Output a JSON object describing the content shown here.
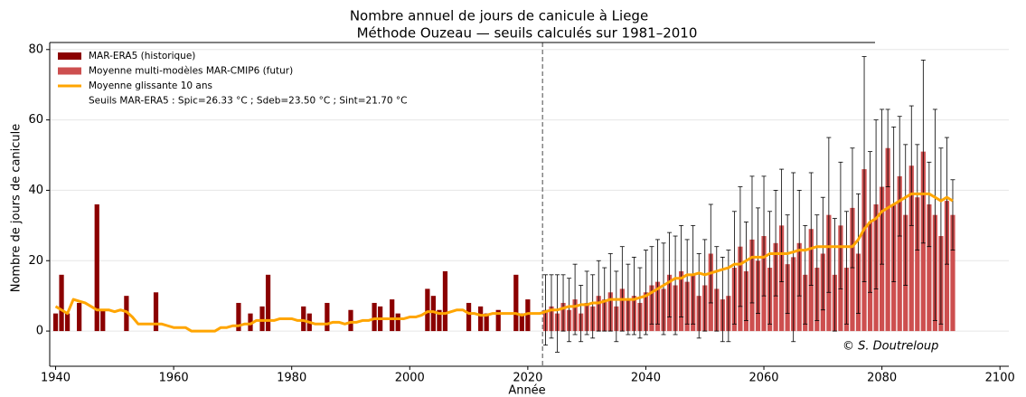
{
  "chart_data": {
    "type": "bar",
    "title": "Nombre annuel de jours de canicule à Liege",
    "subtitle": "Méthode Ouzeau — seuils calculés sur 1981–2010",
    "x_label": "Année",
    "y_label": "Nombre de jours de canicule",
    "legend_note": "Seuils MAR-ERA5 : Spic=26.33 °C ; Sdeb=23.50 °C ; Sint=21.70 °C",
    "annotation": "© S. Doutreloup",
    "legend": "upper left",
    "grid": true,
    "xlim": [
      1939,
      2101.5
    ],
    "xticks": [
      1940,
      1960,
      1980,
      2000,
      2020,
      2040,
      2060,
      2080,
      2100
    ],
    "ylim": [
      -10,
      82
    ],
    "yticks": [
      0,
      20,
      40,
      60,
      80
    ],
    "vline": 2022.5,
    "x": [
      1940,
      1941,
      1942,
      1943,
      1944,
      1945,
      1946,
      1947,
      1948,
      1949,
      1950,
      1951,
      1952,
      1953,
      1954,
      1955,
      1956,
      1957,
      1958,
      1959,
      1960,
      1961,
      1962,
      1963,
      1964,
      1965,
      1966,
      1967,
      1968,
      1969,
      1970,
      1971,
      1972,
      1973,
      1974,
      1975,
      1976,
      1977,
      1978,
      1979,
      1980,
      1981,
      1982,
      1983,
      1984,
      1985,
      1986,
      1987,
      1988,
      1989,
      1990,
      1991,
      1992,
      1993,
      1994,
      1995,
      1996,
      1997,
      1998,
      1999,
      2000,
      2001,
      2002,
      2003,
      2004,
      2005,
      2006,
      2007,
      2008,
      2009,
      2010,
      2011,
      2012,
      2013,
      2014,
      2015,
      2016,
      2017,
      2018,
      2019,
      2020,
      2021,
      2022,
      2023,
      2024,
      2025,
      2026,
      2027,
      2028,
      2029,
      2030,
      2031,
      2032,
      2033,
      2034,
      2035,
      2036,
      2037,
      2038,
      2039,
      2040,
      2041,
      2042,
      2043,
      2044,
      2045,
      2046,
      2047,
      2048,
      2049,
      2050,
      2051,
      2052,
      2053,
      2054,
      2055,
      2056,
      2057,
      2058,
      2059,
      2060,
      2061,
      2062,
      2063,
      2064,
      2065,
      2066,
      2067,
      2068,
      2069,
      2070,
      2071,
      2072,
      2073,
      2074,
      2075,
      2076,
      2077,
      2078,
      2079,
      2080,
      2081,
      2082,
      2083,
      2084,
      2085,
      2086,
      2087,
      2088,
      2089,
      2090,
      2091,
      2092
    ],
    "series": [
      {
        "name": "MAR-ERA5 (historique)",
        "type": "bar",
        "color": "#8b0000",
        "values": [
          5,
          16,
          5,
          0,
          8,
          0,
          0,
          36,
          6,
          0,
          0,
          0,
          10,
          0,
          0,
          0,
          0,
          11,
          0,
          0,
          0,
          0,
          0,
          0,
          0,
          0,
          0,
          0,
          0,
          0,
          0,
          8,
          0,
          5,
          0,
          7,
          16,
          0,
          0,
          0,
          0,
          0,
          7,
          5,
          0,
          0,
          8,
          0,
          0,
          0,
          6,
          0,
          0,
          0,
          8,
          7,
          0,
          9,
          5,
          0,
          0,
          0,
          0,
          12,
          10,
          6,
          17,
          0,
          0,
          0,
          8,
          0,
          7,
          5,
          0,
          6,
          0,
          0,
          16,
          5,
          9,
          0,
          0,
          null,
          null,
          null,
          null,
          null,
          null,
          null,
          null,
          null,
          null,
          null,
          null,
          null,
          null,
          null,
          null,
          null,
          null,
          null,
          null,
          null,
          null,
          null,
          null,
          null,
          null,
          null,
          null,
          null,
          null,
          null,
          null,
          null,
          null,
          null,
          null,
          null,
          null,
          null,
          null,
          null,
          null,
          null,
          null,
          null,
          null,
          null,
          null,
          null,
          null,
          null,
          null,
          null,
          null,
          null,
          null,
          null,
          null,
          null,
          null,
          null,
          null,
          null,
          null,
          null,
          null,
          null,
          null,
          null,
          null
        ]
      },
      {
        "name": "Moyenne multi-modèles MAR-CMIP6 (futur)",
        "type": "bar",
        "color": "#cd4f4f",
        "values": [
          null,
          null,
          null,
          null,
          null,
          null,
          null,
          null,
          null,
          null,
          null,
          null,
          null,
          null,
          null,
          null,
          null,
          null,
          null,
          null,
          null,
          null,
          null,
          null,
          null,
          null,
          null,
          null,
          null,
          null,
          null,
          null,
          null,
          null,
          null,
          null,
          null,
          null,
          null,
          null,
          null,
          null,
          null,
          null,
          null,
          null,
          null,
          null,
          null,
          null,
          null,
          null,
          null,
          null,
          null,
          null,
          null,
          null,
          null,
          null,
          null,
          null,
          null,
          null,
          null,
          null,
          null,
          null,
          null,
          null,
          null,
          null,
          null,
          null,
          null,
          null,
          null,
          null,
          null,
          null,
          null,
          null,
          null,
          6,
          7,
          5,
          8,
          6,
          9,
          5,
          8,
          7,
          10,
          9,
          11,
          7,
          12,
          9,
          10,
          8,
          11,
          13,
          14,
          12,
          16,
          13,
          17,
          14,
          16,
          10,
          13,
          22,
          12,
          9,
          10,
          18,
          24,
          17,
          26,
          20,
          27,
          18,
          25,
          30,
          19,
          21,
          25,
          16,
          29,
          18,
          22,
          33,
          16,
          30,
          18,
          35,
          22,
          46,
          31,
          36,
          41,
          52,
          36,
          44,
          33,
          47,
          38,
          51,
          36,
          33,
          27,
          37,
          33
        ],
        "errors": [
          null,
          null,
          null,
          null,
          null,
          null,
          null,
          null,
          null,
          null,
          null,
          null,
          null,
          null,
          null,
          null,
          null,
          null,
          null,
          null,
          null,
          null,
          null,
          null,
          null,
          null,
          null,
          null,
          null,
          null,
          null,
          null,
          null,
          null,
          null,
          null,
          null,
          null,
          null,
          null,
          null,
          null,
          null,
          null,
          null,
          null,
          null,
          null,
          null,
          null,
          null,
          null,
          null,
          null,
          null,
          null,
          null,
          null,
          null,
          null,
          null,
          null,
          null,
          null,
          null,
          null,
          null,
          null,
          null,
          null,
          null,
          null,
          null,
          null,
          null,
          null,
          null,
          null,
          null,
          null,
          null,
          null,
          null,
          10,
          9,
          11,
          8,
          9,
          10,
          8,
          9,
          9,
          10,
          9,
          11,
          10,
          12,
          10,
          11,
          10,
          12,
          11,
          12,
          13,
          12,
          14,
          13,
          12,
          14,
          12,
          13,
          14,
          12,
          12,
          13,
          16,
          17,
          14,
          18,
          15,
          17,
          16,
          15,
          16,
          14,
          24,
          15,
          14,
          16,
          15,
          16,
          22,
          16,
          18,
          16,
          17,
          17,
          32,
          20,
          24,
          22,
          11,
          22,
          17,
          20,
          17,
          15,
          26,
          12,
          30,
          25,
          18,
          10
        ]
      },
      {
        "name": "Moyenne glissante 10 ans",
        "type": "line",
        "color": "#ffa500",
        "values": [
          7,
          6,
          5,
          9,
          8.5,
          8,
          7,
          6,
          6,
          6,
          5.5,
          6,
          5.5,
          4,
          2,
          2,
          2,
          2,
          2,
          1.5,
          1,
          1,
          1,
          0,
          0,
          0,
          0,
          0,
          1,
          1,
          1.5,
          1.5,
          2,
          2,
          3,
          3,
          3,
          3,
          3.5,
          3.5,
          3.5,
          3,
          3,
          2.5,
          2,
          2,
          2,
          2.5,
          2.5,
          2,
          2.5,
          2.5,
          3,
          3,
          3.5,
          3.5,
          3.5,
          3.5,
          3.5,
          3.5,
          4,
          4,
          4.5,
          5.5,
          5.5,
          5,
          5,
          5.5,
          6,
          6,
          5,
          5,
          4.5,
          4.5,
          5,
          5,
          5,
          5,
          5,
          4.5,
          5,
          5,
          5,
          5.5,
          6,
          6,
          6.5,
          7,
          7,
          7.5,
          7.5,
          8,
          8,
          8.5,
          9,
          9,
          9,
          9,
          9,
          9.5,
          10,
          11,
          12,
          13,
          14,
          15,
          15,
          16,
          16,
          16.5,
          16,
          16.5,
          17,
          17.5,
          18,
          19,
          19,
          20,
          21,
          21,
          21,
          22,
          22,
          22,
          22,
          22.5,
          23,
          23,
          23.5,
          24,
          24,
          24,
          24,
          24,
          24,
          24,
          26,
          29,
          31,
          32,
          34,
          35,
          36,
          37,
          38,
          39,
          39,
          39,
          39,
          38,
          37,
          38,
          37
        ]
      }
    ]
  }
}
